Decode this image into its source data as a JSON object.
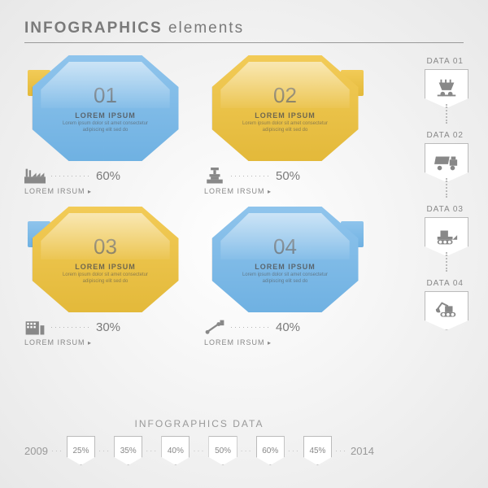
{
  "header": {
    "title_bold": "INFOGRAPHICS",
    "title_light": "elements"
  },
  "colors": {
    "blue": "#8fc4ec",
    "blue_dark": "#6fb1e2",
    "yellow": "#f2cb57",
    "yellow_dark": "#e3b93a",
    "text_gray": "#888888",
    "border_gray": "#bbbbbb"
  },
  "panels": [
    {
      "num": "01",
      "title": "LOREM IPSUM",
      "body": "Lorem ipsum dolor sit amet consectetur adipiscing elit sed do",
      "color": "blue",
      "tab_color": "yellow",
      "tab_side": "left",
      "pct": "60%",
      "more": "LOREM IRSUM",
      "icon": "factory"
    },
    {
      "num": "02",
      "title": "LOREM IPSUM",
      "body": "Lorem ipsum dolor sit amet consectetur adipiscing elit sed do",
      "color": "yellow",
      "tab_color": "yellow",
      "tab_side": "right",
      "pct": "50%",
      "more": "LOREM IRSUM",
      "icon": "press"
    },
    {
      "num": "03",
      "title": "LOREM IPSUM",
      "body": "Lorem ipsum dolor sit amet consectetur adipiscing elit sed do",
      "color": "yellow",
      "tab_color": "blue",
      "tab_side": "left",
      "pct": "30%",
      "more": "LOREM IRSUM",
      "icon": "building"
    },
    {
      "num": "04",
      "title": "LOREM IPSUM",
      "body": "Lorem ipsum dolor sit amet consectetur adipiscing elit sed do",
      "color": "blue",
      "tab_color": "blue",
      "tab_side": "right",
      "pct": "40%",
      "more": "LOREM IRSUM",
      "icon": "conveyor"
    }
  ],
  "side": [
    {
      "label": "DATA 01",
      "icon": "cart"
    },
    {
      "label": "DATA 02",
      "icon": "truck"
    },
    {
      "label": "DATA 03",
      "icon": "bulldozer"
    },
    {
      "label": "DATA 04",
      "icon": "excavator"
    }
  ],
  "timeline": {
    "label": "INFOGRAPHICS DATA",
    "start_year": "2009",
    "end_year": "2014",
    "values": [
      "25%",
      "35%",
      "40%",
      "50%",
      "60%",
      "45%"
    ]
  }
}
